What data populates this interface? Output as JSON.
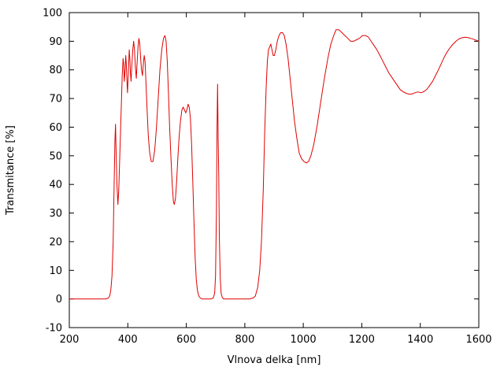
{
  "chart_data": {
    "type": "line",
    "title": "",
    "xlabel": "Vlnova delka [nm]",
    "ylabel": "Transmitance [%]",
    "xlim": [
      200,
      1600
    ],
    "ylim": [
      -10,
      100
    ],
    "x_ticks": [
      200,
      400,
      600,
      800,
      1000,
      1200,
      1400,
      1600
    ],
    "y_ticks": [
      -10,
      0,
      10,
      20,
      30,
      40,
      50,
      60,
      70,
      80,
      90,
      100
    ],
    "grid": false,
    "legend": "none",
    "line_color": "#e00000",
    "axis_color": "#000000",
    "background_color": "#ffffff",
    "series": [
      {
        "name": "transmittance-spectrum",
        "points": [
          [
            200,
            0
          ],
          [
            240,
            0
          ],
          [
            280,
            0
          ],
          [
            310,
            0
          ],
          [
            325,
            0
          ],
          [
            333,
            0.3
          ],
          [
            338,
            1
          ],
          [
            342,
            3
          ],
          [
            346,
            8
          ],
          [
            350,
            20
          ],
          [
            353,
            38
          ],
          [
            356,
            55
          ],
          [
            358,
            61
          ],
          [
            360,
            52
          ],
          [
            363,
            40
          ],
          [
            366,
            33
          ],
          [
            369,
            38
          ],
          [
            372,
            48
          ],
          [
            375,
            58
          ],
          [
            378,
            68
          ],
          [
            381,
            78
          ],
          [
            384,
            84
          ],
          [
            386,
            82
          ],
          [
            388,
            76
          ],
          [
            391,
            80
          ],
          [
            393,
            85
          ],
          [
            395,
            82
          ],
          [
            397,
            76
          ],
          [
            399,
            72
          ],
          [
            402,
            79
          ],
          [
            405,
            87
          ],
          [
            407,
            84
          ],
          [
            409,
            79
          ],
          [
            411,
            76
          ],
          [
            414,
            82
          ],
          [
            417,
            87
          ],
          [
            420,
            90
          ],
          [
            423,
            87
          ],
          [
            426,
            81
          ],
          [
            429,
            77
          ],
          [
            432,
            83
          ],
          [
            435,
            88
          ],
          [
            438,
            91
          ],
          [
            441,
            89
          ],
          [
            444,
            84
          ],
          [
            447,
            80
          ],
          [
            450,
            78
          ],
          [
            453,
            82
          ],
          [
            456,
            85
          ],
          [
            459,
            83
          ],
          [
            462,
            76
          ],
          [
            466,
            66
          ],
          [
            470,
            57
          ],
          [
            475,
            51
          ],
          [
            480,
            48
          ],
          [
            486,
            48
          ],
          [
            492,
            52
          ],
          [
            498,
            60
          ],
          [
            504,
            70
          ],
          [
            510,
            80
          ],
          [
            516,
            87
          ],
          [
            522,
            91
          ],
          [
            527,
            92
          ],
          [
            531,
            90
          ],
          [
            535,
            83
          ],
          [
            539,
            72
          ],
          [
            543,
            60
          ],
          [
            548,
            48
          ],
          [
            552,
            40
          ],
          [
            556,
            34
          ],
          [
            559,
            33
          ],
          [
            563,
            35
          ],
          [
            567,
            41
          ],
          [
            571,
            49
          ],
          [
            575,
            56
          ],
          [
            580,
            62
          ],
          [
            585,
            66
          ],
          [
            589,
            67
          ],
          [
            594,
            66
          ],
          [
            598,
            65
          ],
          [
            602,
            66
          ],
          [
            606,
            68
          ],
          [
            610,
            67
          ],
          [
            614,
            63
          ],
          [
            618,
            54
          ],
          [
            622,
            42
          ],
          [
            626,
            28
          ],
          [
            630,
            15
          ],
          [
            634,
            7
          ],
          [
            638,
            3
          ],
          [
            643,
            1
          ],
          [
            648,
            0.3
          ],
          [
            655,
            0
          ],
          [
            665,
            0
          ],
          [
            675,
            0
          ],
          [
            685,
            0
          ],
          [
            692,
            0.3
          ],
          [
            697,
            2
          ],
          [
            700,
            8
          ],
          [
            703,
            30
          ],
          [
            705,
            60
          ],
          [
            707,
            75
          ],
          [
            709,
            55
          ],
          [
            711,
            43
          ],
          [
            713,
            22
          ],
          [
            716,
            7
          ],
          [
            719,
            2
          ],
          [
            723,
            0.5
          ],
          [
            728,
            0
          ],
          [
            740,
            0
          ],
          [
            760,
            0
          ],
          [
            780,
            0
          ],
          [
            800,
            0
          ],
          [
            815,
            0
          ],
          [
            828,
            0.3
          ],
          [
            836,
            1
          ],
          [
            844,
            4
          ],
          [
            851,
            10
          ],
          [
            857,
            20
          ],
          [
            863,
            38
          ],
          [
            868,
            58
          ],
          [
            873,
            74
          ],
          [
            877,
            83
          ],
          [
            881,
            87
          ],
          [
            885,
            88
          ],
          [
            889,
            89
          ],
          [
            893,
            87
          ],
          [
            897,
            85
          ],
          [
            901,
            85
          ],
          [
            906,
            87
          ],
          [
            911,
            90
          ],
          [
            917,
            92
          ],
          [
            923,
            93
          ],
          [
            929,
            93
          ],
          [
            935,
            92
          ],
          [
            941,
            89
          ],
          [
            948,
            84
          ],
          [
            955,
            77
          ],
          [
            962,
            70
          ],
          [
            970,
            62
          ],
          [
            978,
            56
          ],
          [
            986,
            51
          ],
          [
            994,
            49
          ],
          [
            1002,
            48
          ],
          [
            1010,
            47.5
          ],
          [
            1018,
            48
          ],
          [
            1026,
            50
          ],
          [
            1036,
            54
          ],
          [
            1048,
            61
          ],
          [
            1060,
            69
          ],
          [
            1072,
            77
          ],
          [
            1084,
            84
          ],
          [
            1094,
            89
          ],
          [
            1104,
            92
          ],
          [
            1112,
            94
          ],
          [
            1122,
            94
          ],
          [
            1132,
            93
          ],
          [
            1142,
            92
          ],
          [
            1152,
            91
          ],
          [
            1162,
            90
          ],
          [
            1172,
            90
          ],
          [
            1182,
            90.5
          ],
          [
            1192,
            91
          ],
          [
            1202,
            92
          ],
          [
            1212,
            92
          ],
          [
            1222,
            91.5
          ],
          [
            1232,
            90
          ],
          [
            1242,
            88.5
          ],
          [
            1252,
            87
          ],
          [
            1262,
            85
          ],
          [
            1272,
            83
          ],
          [
            1282,
            81
          ],
          [
            1292,
            79
          ],
          [
            1302,
            77.5
          ],
          [
            1312,
            76
          ],
          [
            1322,
            74.5
          ],
          [
            1332,
            73
          ],
          [
            1342,
            72.3
          ],
          [
            1352,
            71.8
          ],
          [
            1362,
            71.5
          ],
          [
            1372,
            71.6
          ],
          [
            1382,
            72
          ],
          [
            1392,
            72.3
          ],
          [
            1402,
            72
          ],
          [
            1412,
            72.4
          ],
          [
            1422,
            73.2
          ],
          [
            1432,
            74.5
          ],
          [
            1442,
            76
          ],
          [
            1452,
            78
          ],
          [
            1462,
            80
          ],
          [
            1472,
            82.3
          ],
          [
            1482,
            84.5
          ],
          [
            1492,
            86.3
          ],
          [
            1502,
            87.8
          ],
          [
            1512,
            89
          ],
          [
            1522,
            90
          ],
          [
            1532,
            90.8
          ],
          [
            1542,
            91.2
          ],
          [
            1552,
            91.4
          ],
          [
            1562,
            91.3
          ],
          [
            1572,
            91
          ],
          [
            1582,
            90.7
          ],
          [
            1592,
            90.3
          ],
          [
            1600,
            90
          ]
        ]
      }
    ]
  }
}
